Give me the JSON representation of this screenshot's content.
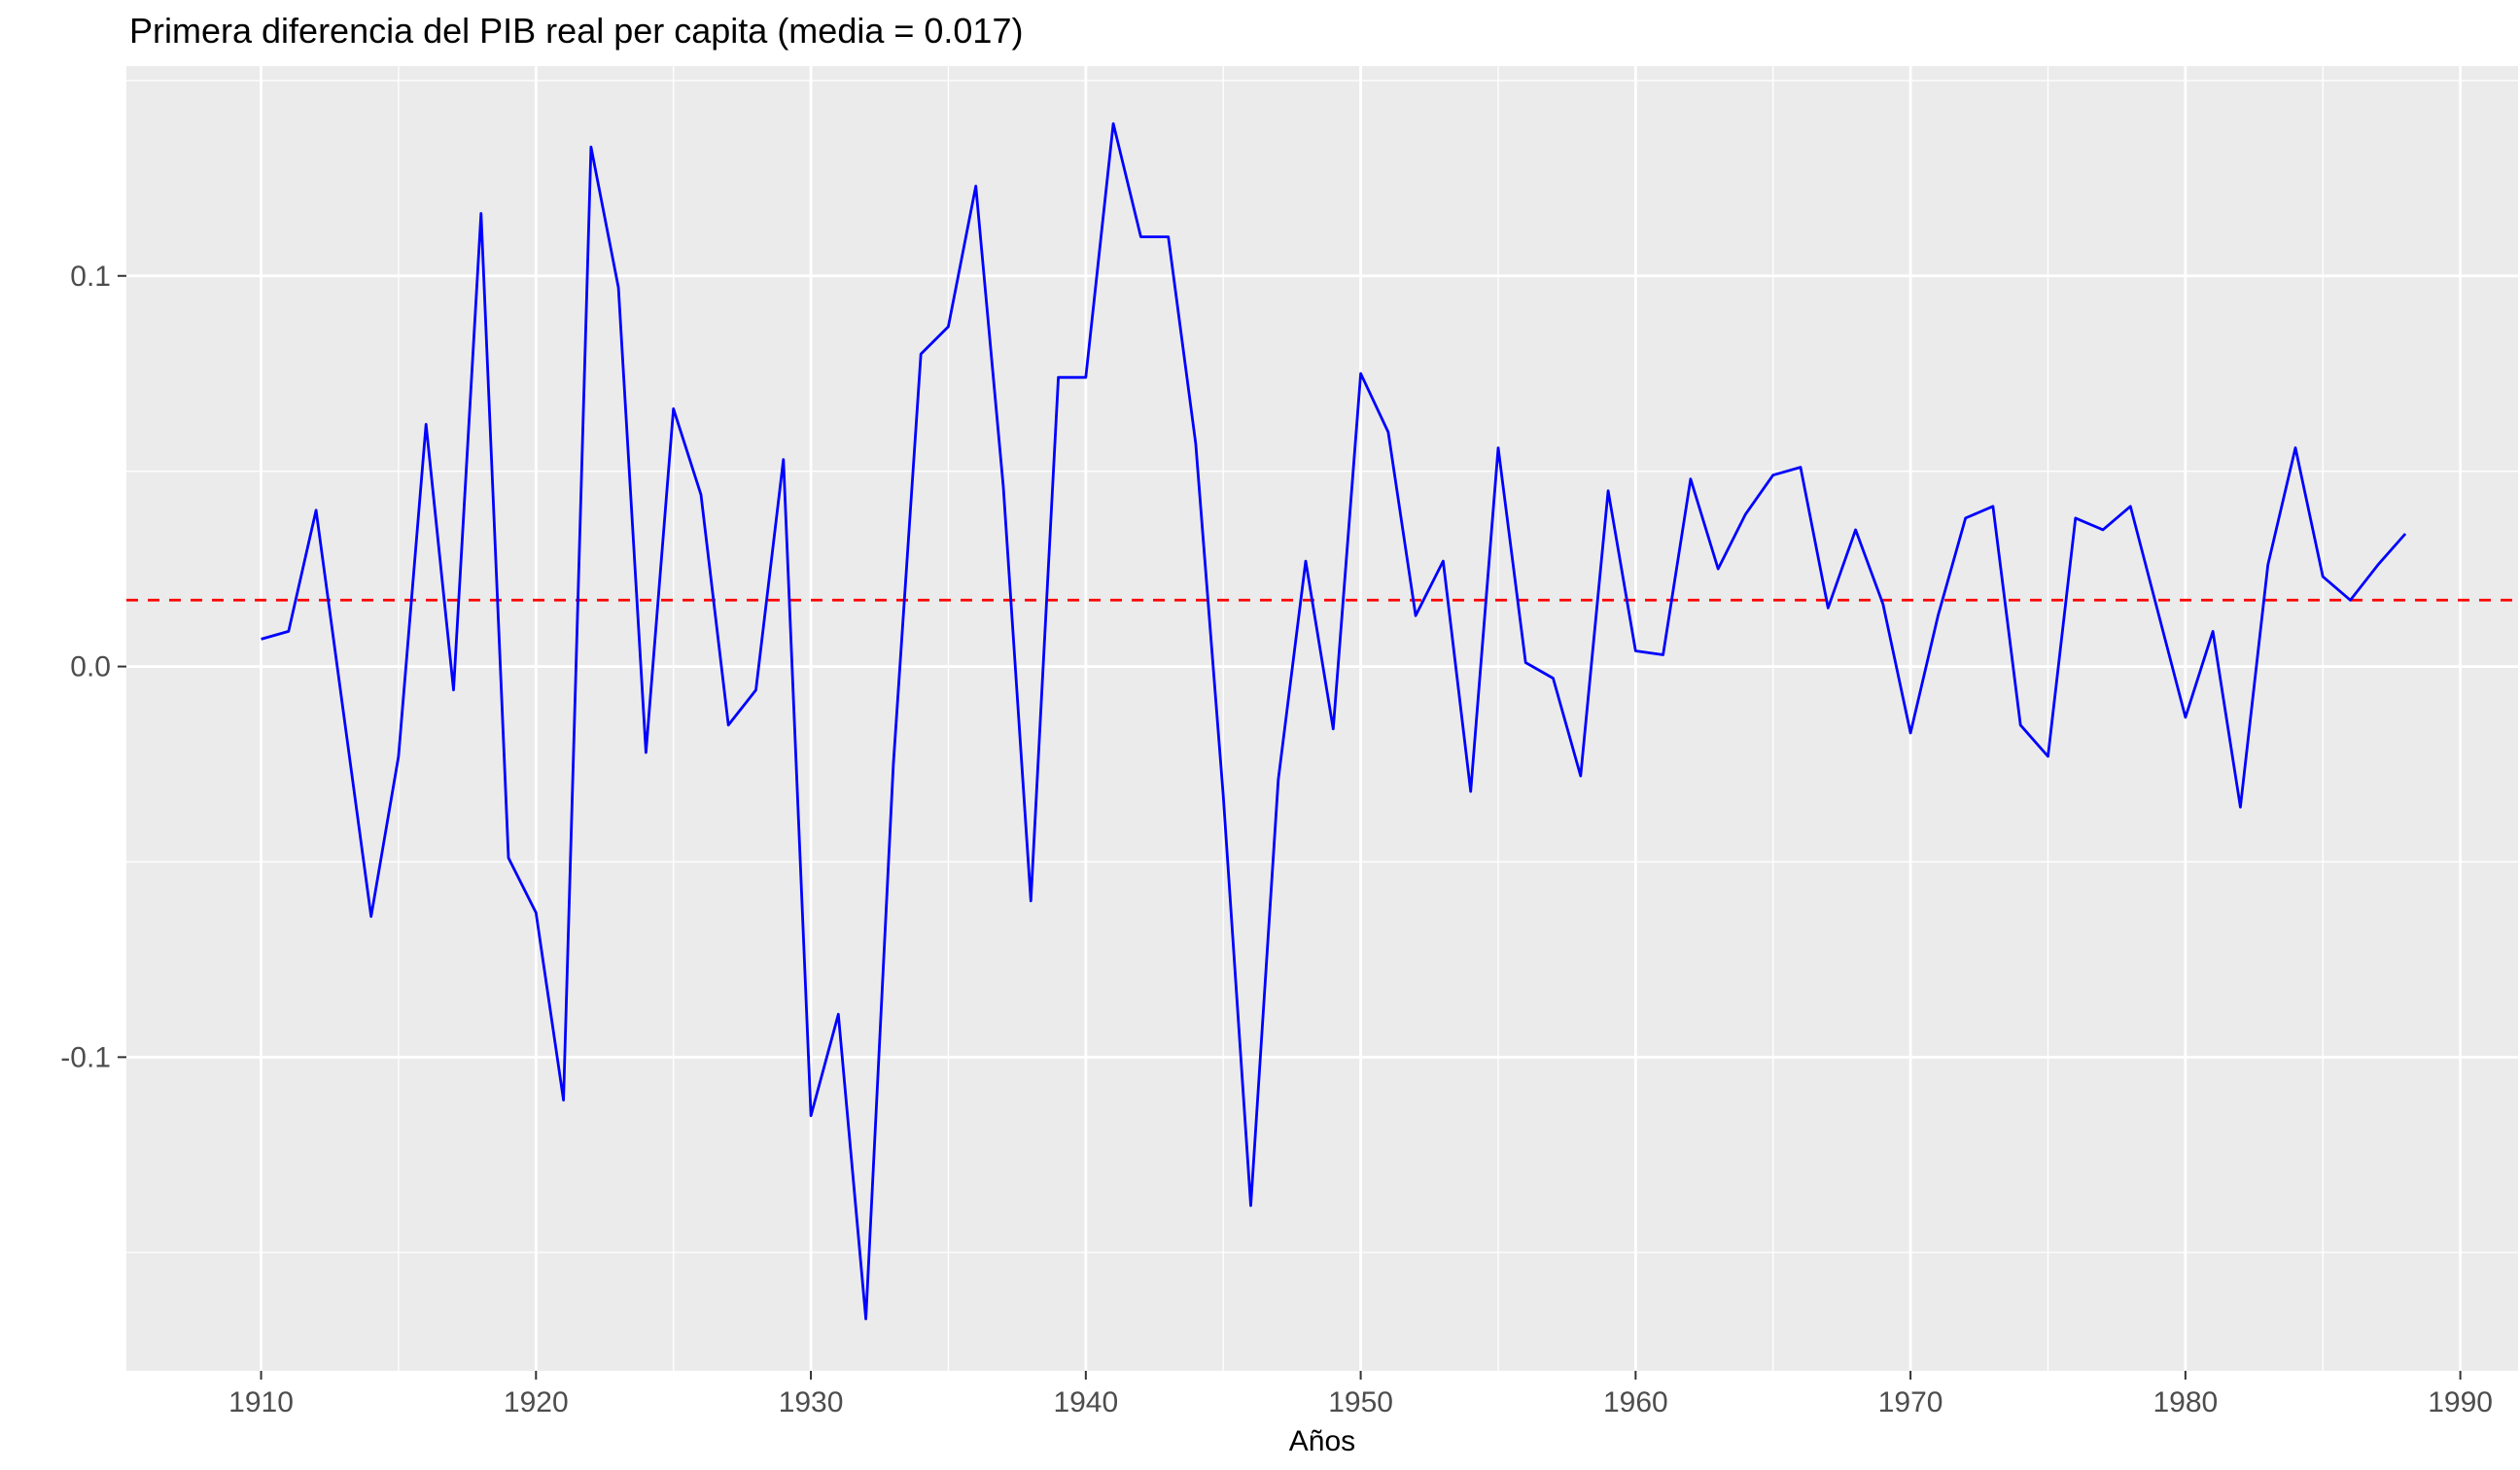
{
  "chart_data": {
    "type": "line",
    "title": "Primera diferencia del PIB real per capita (media = 0.017)",
    "xlabel": "Años",
    "ylabel": "",
    "xlim": [
      1905.1,
      1992.1
    ],
    "ylim": [
      -0.1803,
      0.1537
    ],
    "x_ticks": [
      1910,
      1920,
      1930,
      1940,
      1950,
      1960,
      1970,
      1980,
      1990
    ],
    "x_tick_labels": [
      "1910",
      "1920",
      "1930",
      "1940",
      "1950",
      "1960",
      "1970",
      "1980",
      "1990"
    ],
    "y_ticks": [
      -0.1,
      0.0,
      0.1
    ],
    "y_tick_labels": [
      "-0.1",
      "0.0",
      "0.1"
    ],
    "grid": true,
    "series": [
      {
        "color": "#0000ff",
        "x": [
          1910,
          1911,
          1912,
          1913,
          1914,
          1915,
          1916,
          1917,
          1918,
          1919,
          1920,
          1921,
          1922,
          1923,
          1924,
          1925,
          1926,
          1927,
          1928,
          1929,
          1930,
          1931,
          1932,
          1933,
          1934,
          1935,
          1936,
          1937,
          1938,
          1939,
          1940,
          1941,
          1942,
          1943,
          1944,
          1945,
          1946,
          1947,
          1948,
          1949,
          1950,
          1951,
          1952,
          1953,
          1954,
          1955,
          1956,
          1957,
          1958,
          1959,
          1960,
          1961,
          1962,
          1963,
          1964,
          1965,
          1966,
          1967,
          1968,
          1969,
          1970,
          1971,
          1972,
          1973,
          1974,
          1975,
          1976,
          1977,
          1978,
          1979,
          1980,
          1981,
          1982,
          1983,
          1984,
          1985,
          1986,
          1987,
          1988
        ],
        "values": [
          0.007,
          0.009,
          0.04,
          -0.012,
          -0.064,
          -0.023,
          0.062,
          -0.006,
          0.116,
          -0.049,
          -0.063,
          -0.111,
          0.133,
          0.097,
          -0.022,
          0.066,
          0.044,
          -0.015,
          -0.006,
          0.053,
          -0.115,
          -0.089,
          -0.167,
          -0.025,
          0.08,
          0.087,
          0.123,
          0.046,
          -0.06,
          0.074,
          0.074,
          0.139,
          0.11,
          0.11,
          0.057,
          -0.033,
          -0.138,
          -0.029,
          0.027,
          -0.016,
          0.075,
          0.06,
          0.013,
          0.027,
          -0.032,
          0.056,
          0.001,
          -0.003,
          -0.028,
          0.045,
          0.004,
          0.003,
          0.048,
          0.025,
          0.039,
          0.049,
          0.051,
          0.015,
          0.035,
          0.016,
          -0.017,
          0.013,
          0.038,
          0.041,
          -0.015,
          -0.023,
          0.038,
          0.035,
          0.041,
          0.014,
          -0.013,
          0.009,
          -0.036,
          0.026,
          0.056,
          0.023,
          0.017,
          0.026,
          0.034
        ]
      }
    ],
    "reference_line": {
      "y": 0.017,
      "color": "#ff0000",
      "style": "dashed"
    },
    "colors": {
      "panel": "#ebebeb",
      "grid": "#ffffff",
      "text": "#000000",
      "axis_text": "#4d4d4d"
    }
  }
}
